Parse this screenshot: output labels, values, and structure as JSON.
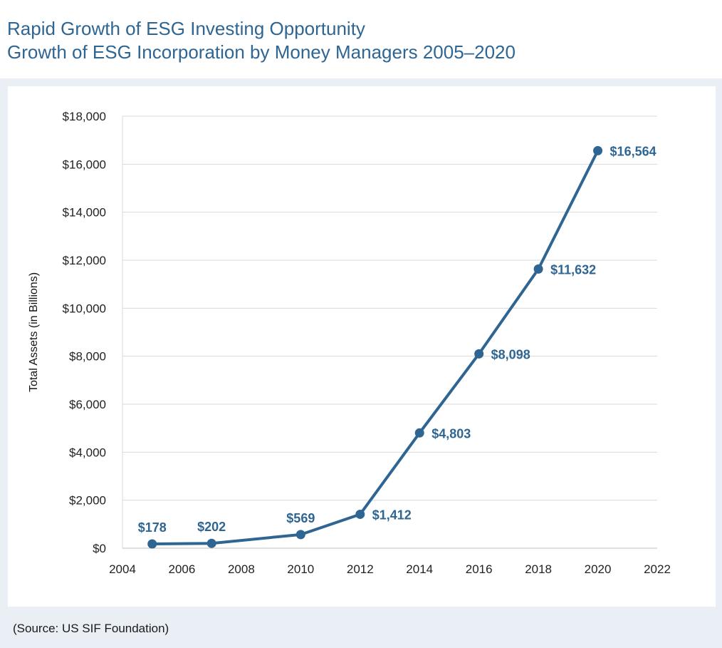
{
  "header": {
    "title": "Rapid Growth of ESG Investing Opportunity",
    "subtitle": "Growth of ESG Incorporation by Money Managers 2005–2020"
  },
  "footer": {
    "source": "(Source: US SIF Foundation)"
  },
  "colors": {
    "accent": "#2e6592",
    "panel": "#eaeff6",
    "grid": "#d9d9d9"
  },
  "chart_data": {
    "type": "line",
    "title": "",
    "xlabel": "",
    "ylabel": "Total Assets (in Billions)",
    "xlim": [
      2004,
      2022
    ],
    "ylim": [
      0,
      18000
    ],
    "x_ticks": [
      2004,
      2006,
      2008,
      2010,
      2012,
      2014,
      2016,
      2018,
      2020,
      2022
    ],
    "y_ticks": [
      0,
      2000,
      4000,
      6000,
      8000,
      10000,
      12000,
      14000,
      16000,
      18000
    ],
    "y_tick_labels": [
      "$0",
      "$2,000",
      "$4,000",
      "$6,000",
      "$8,000",
      "$10,000",
      "$12,000",
      "$14,000",
      "$16,000",
      "$18,000"
    ],
    "grid": "horizontal",
    "legend": "none",
    "series": [
      {
        "x": [
          2005,
          2007,
          2010,
          2012,
          2014,
          2016,
          2018,
          2020
        ],
        "values": [
          178,
          202,
          569,
          1412,
          4803,
          8098,
          11632,
          16564
        ],
        "labels": [
          "$178",
          "$202",
          "$569",
          "$1,412",
          "$4,803",
          "$8,098",
          "$11,632",
          "$16,564"
        ],
        "label_positions": [
          "above",
          "above",
          "above",
          "right",
          "right",
          "right",
          "right",
          "right"
        ]
      }
    ]
  }
}
